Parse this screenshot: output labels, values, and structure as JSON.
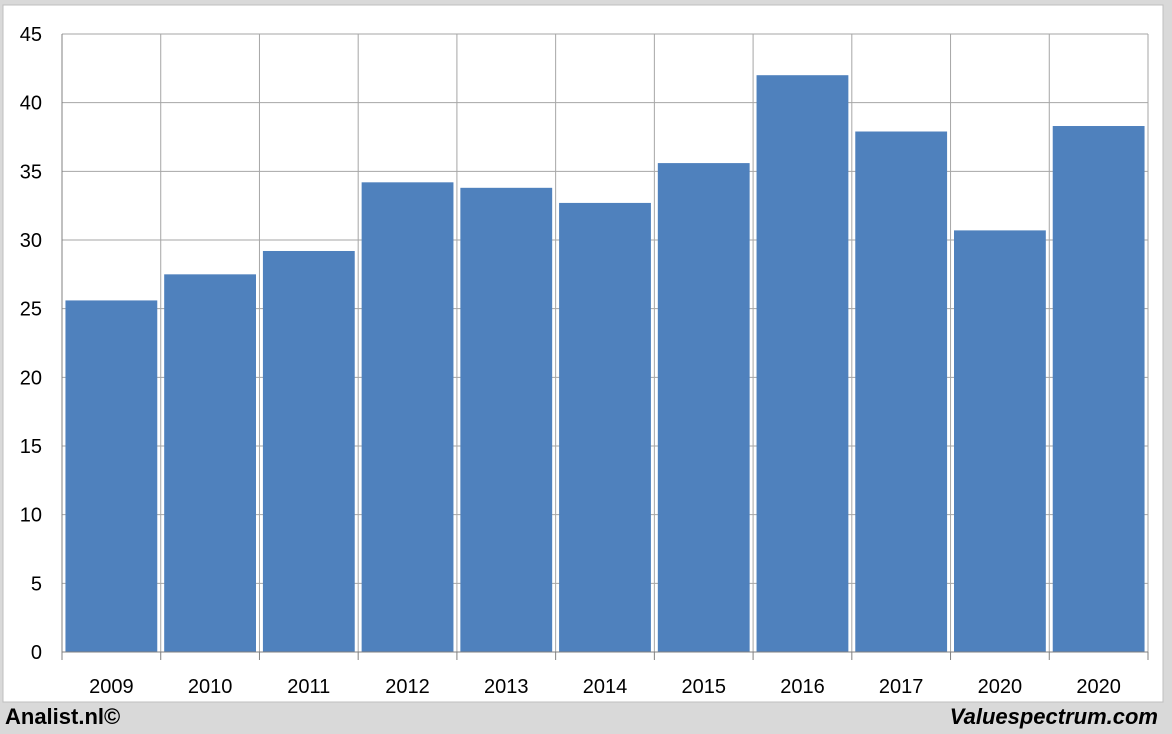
{
  "chart_data": {
    "type": "bar",
    "categories": [
      "2009",
      "2010",
      "2011",
      "2012",
      "2013",
      "2014",
      "2015",
      "2016",
      "2017",
      "2020",
      "2020"
    ],
    "values": [
      25.6,
      27.5,
      29.2,
      34.2,
      33.8,
      32.7,
      35.6,
      42.0,
      37.9,
      30.7,
      38.3
    ],
    "title": "",
    "xlabel": "",
    "ylabel": "",
    "ylim": [
      0,
      45
    ],
    "yticks": [
      0,
      5,
      10,
      15,
      20,
      25,
      30,
      35,
      40,
      45
    ],
    "grid": true,
    "legend": "none",
    "bar_color": "#4f81bd",
    "grid_color": "#a6a6a6"
  },
  "footer": {
    "left": "Analist.nl©",
    "right": "Valuespectrum.com"
  }
}
